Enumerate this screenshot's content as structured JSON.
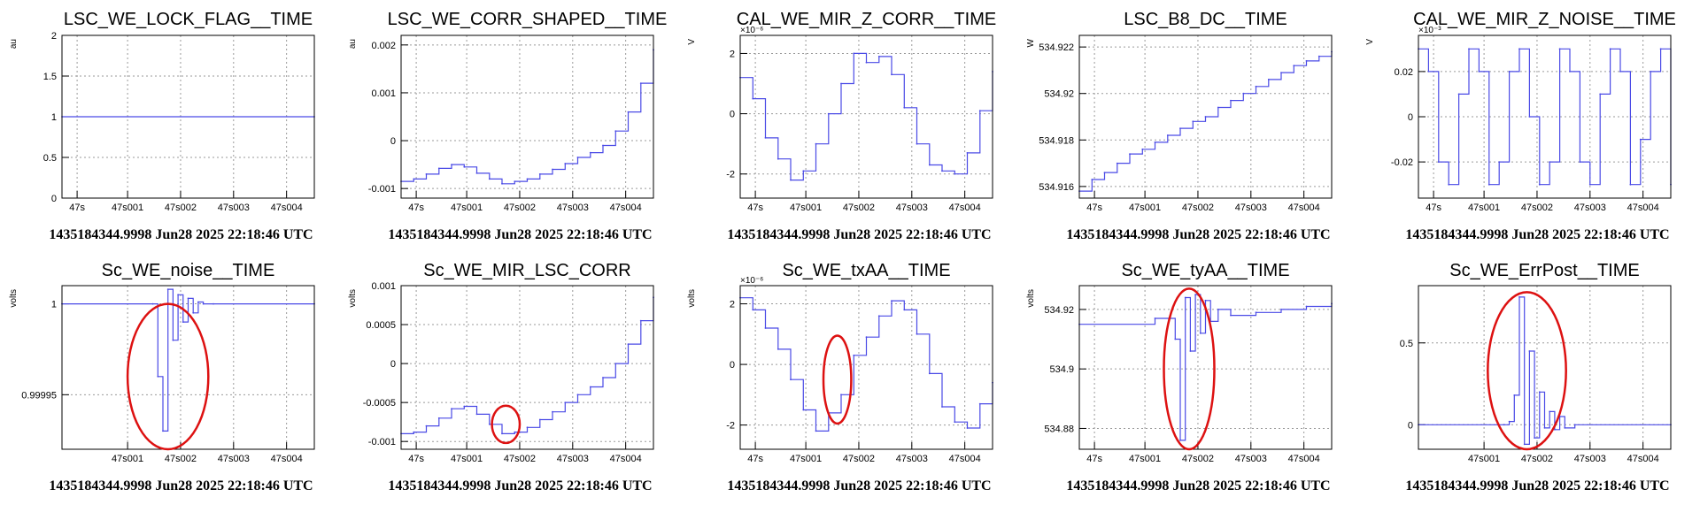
{
  "colors": {
    "series": "#4a4ae6",
    "highlight": "#dd1111",
    "frame": "#000000",
    "grid": "#9a9a9a"
  },
  "chart_data": [
    {
      "type": "line",
      "title": "LSC_WE_LOCK_FLAG__TIME",
      "ylabel": "au",
      "exponent": "",
      "xlim": [
        0,
        1
      ],
      "ylim": [
        0,
        2
      ],
      "yticks": [
        0,
        0.5,
        1,
        1.5,
        2
      ],
      "ytick_labels": [
        "0",
        "0.5",
        "1",
        "1.5",
        "2"
      ],
      "footer": "1435184344.9998 Jun28 2025 22:18:46 UTC",
      "x": [
        0,
        1
      ],
      "y": [
        1,
        1
      ]
    },
    {
      "type": "line",
      "title": "LSC_WE_CORR_SHAPED__TIME",
      "ylabel": "au",
      "exponent": "",
      "xlim": [
        0,
        1
      ],
      "ylim": [
        -0.0012,
        0.0022
      ],
      "yticks": [
        -0.001,
        0,
        0.001,
        0.002
      ],
      "ytick_labels": [
        "-0.001",
        "0",
        "0.001",
        "0.002"
      ],
      "footer": "1435184344.9998 Jun28 2025 22:18:46 UTC",
      "x": [
        0,
        0.05,
        0.1,
        0.15,
        0.2,
        0.25,
        0.3,
        0.35,
        0.4,
        0.45,
        0.5,
        0.55,
        0.6,
        0.65,
        0.7,
        0.75,
        0.8,
        0.85,
        0.9,
        0.95,
        1
      ],
      "y": [
        -0.00085,
        -0.0008,
        -0.0007,
        -0.00058,
        -0.0005,
        -0.00055,
        -0.00068,
        -0.0008,
        -0.0009,
        -0.00085,
        -0.0008,
        -0.0007,
        -0.0006,
        -0.00048,
        -0.00035,
        -0.00025,
        -0.0001,
        0.0002,
        0.0006,
        0.0012,
        0.0019
      ]
    },
    {
      "type": "line",
      "title": "CAL_WE_MIR_Z_CORR__TIME",
      "ylabel": "V",
      "exponent": "×10⁻⁶",
      "xlim": [
        0,
        1
      ],
      "ylim": [
        -2.8,
        2.6
      ],
      "yticks": [
        -2,
        0,
        2
      ],
      "ytick_labels": [
        "-2",
        "0",
        "2"
      ],
      "footer": "1435184344.9998 Jun28 2025 22:18:46 UTC",
      "x": [
        0,
        0.05,
        0.1,
        0.15,
        0.2,
        0.25,
        0.3,
        0.35,
        0.4,
        0.45,
        0.5,
        0.55,
        0.6,
        0.65,
        0.7,
        0.75,
        0.8,
        0.85,
        0.9,
        0.95,
        1
      ],
      "y": [
        1.2,
        0.5,
        -0.8,
        -1.5,
        -2.2,
        -1.9,
        -1.0,
        0.0,
        1.0,
        2.0,
        1.7,
        1.9,
        1.3,
        0.2,
        -1.0,
        -1.7,
        -1.9,
        -2.0,
        -1.3,
        0.1,
        1.4
      ]
    },
    {
      "type": "line",
      "title": "LSC_B8_DC__TIME",
      "ylabel": "W",
      "exponent": "",
      "xlim": [
        0,
        1
      ],
      "ylim": [
        534.9155,
        534.9225
      ],
      "yticks": [
        534.916,
        534.918,
        534.92,
        534.922
      ],
      "ytick_labels": [
        "534.916",
        "534.918",
        "534.92",
        "534.922"
      ],
      "footer": "1435184344.9998 Jun28 2025 22:18:46 UTC",
      "x": [
        0,
        0.05,
        0.1,
        0.15,
        0.2,
        0.25,
        0.3,
        0.35,
        0.4,
        0.45,
        0.5,
        0.55,
        0.6,
        0.65,
        0.7,
        0.75,
        0.8,
        0.85,
        0.9,
        0.95,
        1
      ],
      "y": [
        534.9158,
        534.9163,
        534.9166,
        534.917,
        534.9174,
        534.9176,
        534.9179,
        534.9182,
        534.9185,
        534.9188,
        534.919,
        534.9194,
        534.9197,
        534.92,
        534.9203,
        534.9206,
        534.9209,
        534.9212,
        534.9214,
        534.9216,
        534.9218
      ]
    },
    {
      "type": "line",
      "title": "CAL_WE_MIR_Z_NOISE__TIME",
      "ylabel": "V",
      "exponent": "×10⁻³",
      "xlim": [
        0,
        1
      ],
      "ylim": [
        -0.036,
        0.036
      ],
      "yticks": [
        -0.02,
        0,
        0.02
      ],
      "ytick_labels": [
        "-0.02",
        "0",
        "0.02"
      ],
      "footer": "1435184344.9998 Jun28 2025 22:18:46 UTC",
      "x": [
        0,
        0.04,
        0.08,
        0.12,
        0.16,
        0.2,
        0.24,
        0.28,
        0.32,
        0.36,
        0.4,
        0.44,
        0.48,
        0.52,
        0.56,
        0.6,
        0.64,
        0.68,
        0.72,
        0.76,
        0.8,
        0.84,
        0.88,
        0.92,
        0.96,
        1
      ],
      "y": [
        0.03,
        0.02,
        -0.02,
        -0.03,
        0.01,
        0.03,
        0.02,
        -0.03,
        -0.02,
        0.02,
        0.03,
        0.0,
        -0.03,
        -0.02,
        0.03,
        0.02,
        -0.02,
        -0.03,
        0.01,
        0.03,
        0.02,
        -0.03,
        -0.01,
        0.02,
        0.03,
        -0.03
      ]
    },
    {
      "type": "line",
      "title": "Sc_WE_noise__TIME",
      "ylabel": "volts",
      "exponent": "",
      "xlim": [
        0,
        1
      ],
      "ylim": [
        0.99992,
        1.00001
      ],
      "yticks": [
        0.99995,
        1
      ],
      "ytick_labels": [
        "0.99995",
        "1"
      ],
      "footer": "1435184344.9998 Jun28 2025 22:18:46 UTC",
      "x": [
        0,
        0.36,
        0.38,
        0.4,
        0.42,
        0.44,
        0.46,
        0.48,
        0.5,
        0.52,
        0.54,
        0.56,
        0.6,
        1
      ],
      "y": [
        1,
        1,
        0.99996,
        0.99993,
        1.000008,
        0.99998,
        1.000005,
        0.99999,
        1.000003,
        0.999995,
        1.000001,
        1.0,
        1,
        1
      ],
      "highlight": {
        "cx": 0.42,
        "cy": 0.99996,
        "rx": 0.16,
        "ry": 4e-05
      }
    },
    {
      "type": "line",
      "title": "Sc_WE_MIR_LSC_CORR",
      "ylabel": "volts",
      "exponent": "",
      "xlim": [
        0,
        1
      ],
      "ylim": [
        -0.0011,
        0.001
      ],
      "yticks": [
        -0.001,
        -0.0005,
        0,
        0.0005,
        0.001
      ],
      "ytick_labels": [
        "-0.001",
        "-0.0005",
        "0",
        "0.0005",
        "0.001"
      ],
      "footer": "1435184344.9998 Jun28 2025 22:18:46 UTC",
      "x": [
        0,
        0.05,
        0.1,
        0.15,
        0.2,
        0.25,
        0.3,
        0.35,
        0.4,
        0.45,
        0.5,
        0.55,
        0.6,
        0.65,
        0.7,
        0.75,
        0.8,
        0.85,
        0.9,
        0.95,
        1
      ],
      "y": [
        -0.0009,
        -0.00088,
        -0.0008,
        -0.0007,
        -0.00058,
        -0.00055,
        -0.00065,
        -0.00078,
        -0.0009,
        -0.00088,
        -0.00082,
        -0.00072,
        -0.00062,
        -0.0005,
        -0.0004,
        -0.0003,
        -0.00018,
        0.0,
        0.00025,
        0.00055,
        0.00085
      ],
      "highlight": {
        "cx": 0.415,
        "cy": -0.00078,
        "rx": 0.055,
        "ry": 0.00024
      }
    },
    {
      "type": "line",
      "title": "Sc_WE_txAA__TIME",
      "ylabel": "volts",
      "exponent": "×10⁻⁶",
      "xlim": [
        0,
        1
      ],
      "ylim": [
        -2.8,
        2.6
      ],
      "yticks": [
        -2,
        0,
        2
      ],
      "ytick_labels": [
        "-2",
        "0",
        "2"
      ],
      "footer": "1435184344.9998 Jun28 2025 22:18:46 UTC",
      "x": [
        0,
        0.05,
        0.1,
        0.15,
        0.2,
        0.25,
        0.3,
        0.35,
        0.4,
        0.45,
        0.5,
        0.55,
        0.6,
        0.65,
        0.7,
        0.75,
        0.8,
        0.85,
        0.9,
        0.95,
        1
      ],
      "y": [
        2.2,
        1.8,
        1.2,
        0.5,
        -0.5,
        -1.5,
        -2.2,
        -1.6,
        -1.0,
        0.3,
        0.9,
        1.6,
        2.1,
        1.8,
        1.0,
        -0.3,
        -1.4,
        -1.9,
        -2.1,
        -1.3,
        -0.6
      ],
      "highlight": {
        "cx": 0.385,
        "cy": -0.5,
        "rx": 0.055,
        "ry": 1.45
      }
    },
    {
      "type": "line",
      "title": "Sc_WE_tyAA__TIME",
      "ylabel": "volts",
      "exponent": "",
      "xlim": [
        0,
        1
      ],
      "ylim": [
        534.873,
        534.928
      ],
      "yticks": [
        534.88,
        534.9,
        534.92
      ],
      "ytick_labels": [
        "534.88",
        "534.9",
        "534.92"
      ],
      "footer": "1435184344.9998 Jun28 2025 22:18:46 UTC",
      "x": [
        0,
        0.3,
        0.38,
        0.4,
        0.42,
        0.44,
        0.46,
        0.48,
        0.5,
        0.52,
        0.55,
        0.6,
        0.7,
        0.8,
        0.9,
        1
      ],
      "y": [
        534.915,
        534.917,
        534.91,
        534.876,
        534.924,
        534.906,
        534.925,
        534.912,
        534.923,
        534.916,
        534.92,
        534.918,
        534.919,
        534.92,
        534.921,
        534.922
      ],
      "highlight": {
        "cx": 0.435,
        "cy": 534.9,
        "rx": 0.1,
        "ry": 0.027
      }
    },
    {
      "type": "line",
      "title": "Sc_WE_ErrPost__TIME",
      "ylabel": "",
      "exponent": "",
      "xlim": [
        0,
        1
      ],
      "ylim": [
        -0.15,
        0.85
      ],
      "yticks": [
        0,
        0.5
      ],
      "ytick_labels": [
        "0",
        "0.5"
      ],
      "footer": "1435184344.9998 Jun28 2025 22:18:46 UTC",
      "x": [
        0,
        0.34,
        0.36,
        0.38,
        0.4,
        0.42,
        0.44,
        0.46,
        0.48,
        0.5,
        0.52,
        0.54,
        0.56,
        0.58,
        0.62,
        1
      ],
      "y": [
        0,
        0,
        0.02,
        0.18,
        0.78,
        -0.12,
        0.45,
        -0.08,
        0.2,
        -0.02,
        0.08,
        -0.03,
        0.05,
        -0.02,
        0,
        0
      ],
      "highlight": {
        "cx": 0.43,
        "cy": 0.33,
        "rx": 0.155,
        "ry": 0.48
      }
    }
  ],
  "x_ticks": [
    {
      "pos": 0.06,
      "label": "47s"
    },
    {
      "pos": 0.26,
      "label": "47s001"
    },
    {
      "pos": 0.47,
      "label": "47s002"
    },
    {
      "pos": 0.68,
      "label": "47s003"
    },
    {
      "pos": 0.89,
      "label": "47s004"
    }
  ],
  "x_ticks_row2": [
    {
      "pos": 0.26,
      "label": "47s001"
    },
    {
      "pos": 0.47,
      "label": "47s002"
    },
    {
      "pos": 0.68,
      "label": "47s003"
    },
    {
      "pos": 0.89,
      "label": "47s004"
    }
  ]
}
